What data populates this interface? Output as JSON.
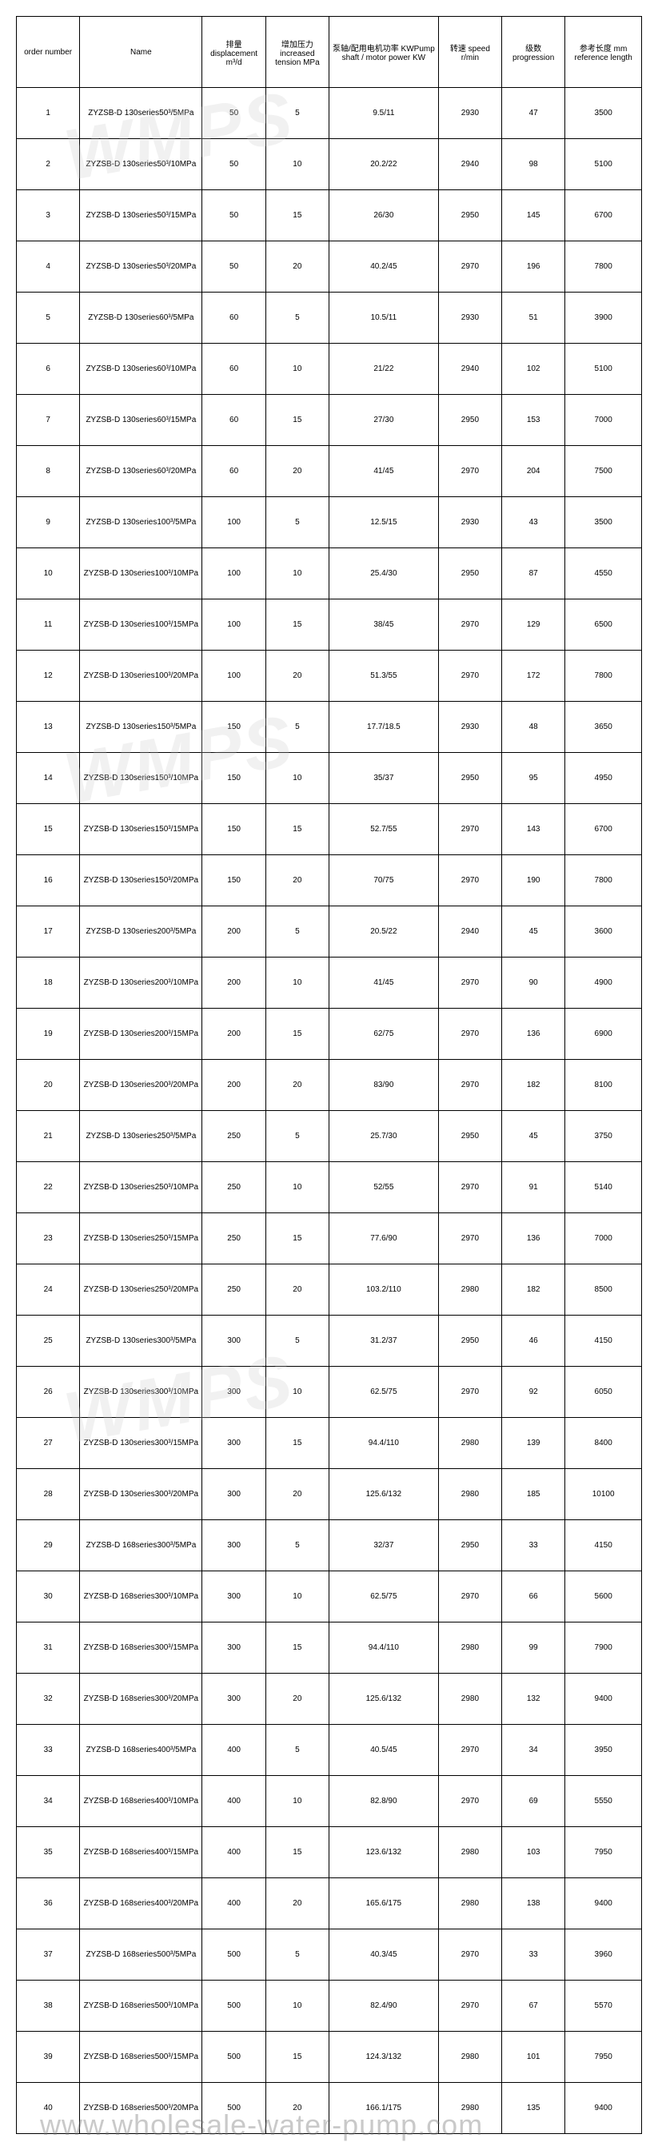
{
  "watermark_text": "WMPS",
  "url_watermark": "www.wholesale-water-pump.com",
  "table": {
    "columns": [
      "order number",
      "Name",
      "排量 displacement m³/d",
      "增加压力 increased tension MPa",
      "泵轴/配用电机功率 KWPump shaft / motor power KW",
      "转速 speed r/min",
      "级数 progression",
      "参考长度 mm reference length"
    ],
    "rows": [
      [
        "1",
        "ZYZSB-D 130series50³/5MPa",
        "50",
        "5",
        "9.5/11",
        "2930",
        "47",
        "3500"
      ],
      [
        "2",
        "ZYZSB-D 130series50³/10MPa",
        "50",
        "10",
        "20.2/22",
        "2940",
        "98",
        "5100"
      ],
      [
        "3",
        "ZYZSB-D 130series50³/15MPa",
        "50",
        "15",
        "26/30",
        "2950",
        "145",
        "6700"
      ],
      [
        "4",
        "ZYZSB-D 130series50³/20MPa",
        "50",
        "20",
        "40.2/45",
        "2970",
        "196",
        "7800"
      ],
      [
        "5",
        "ZYZSB-D 130series60³/5MPa",
        "60",
        "5",
        "10.5/11",
        "2930",
        "51",
        "3900"
      ],
      [
        "6",
        "ZYZSB-D 130series60³/10MPa",
        "60",
        "10",
        "21/22",
        "2940",
        "102",
        "5100"
      ],
      [
        "7",
        "ZYZSB-D 130series60³/15MPa",
        "60",
        "15",
        "27/30",
        "2950",
        "153",
        "7000"
      ],
      [
        "8",
        "ZYZSB-D 130series60³/20MPa",
        "60",
        "20",
        "41/45",
        "2970",
        "204",
        "7500"
      ],
      [
        "9",
        "ZYZSB-D 130series100³/5MPa",
        "100",
        "5",
        "12.5/15",
        "2930",
        "43",
        "3500"
      ],
      [
        "10",
        "ZYZSB-D 130series100³/10MPa",
        "100",
        "10",
        "25.4/30",
        "2950",
        "87",
        "4550"
      ],
      [
        "11",
        "ZYZSB-D 130series100³/15MPa",
        "100",
        "15",
        "38/45",
        "2970",
        "129",
        "6500"
      ],
      [
        "12",
        "ZYZSB-D 130series100³/20MPa",
        "100",
        "20",
        "51.3/55",
        "2970",
        "172",
        "7800"
      ],
      [
        "13",
        "ZYZSB-D 130series150³/5MPa",
        "150",
        "5",
        "17.7/18.5",
        "2930",
        "48",
        "3650"
      ],
      [
        "14",
        "ZYZSB-D 130series150³/10MPa",
        "150",
        "10",
        "35/37",
        "2950",
        "95",
        "4950"
      ],
      [
        "15",
        "ZYZSB-D 130series150³/15MPa",
        "150",
        "15",
        "52.7/55",
        "2970",
        "143",
        "6700"
      ],
      [
        "16",
        "ZYZSB-D 130series150³/20MPa",
        "150",
        "20",
        "70/75",
        "2970",
        "190",
        "7800"
      ],
      [
        "17",
        "ZYZSB-D 130series200³/5MPa",
        "200",
        "5",
        "20.5/22",
        "2940",
        "45",
        "3600"
      ],
      [
        "18",
        "ZYZSB-D 130series200³/10MPa",
        "200",
        "10",
        "41/45",
        "2970",
        "90",
        "4900"
      ],
      [
        "19",
        "ZYZSB-D 130series200³/15MPa",
        "200",
        "15",
        "62/75",
        "2970",
        "136",
        "6900"
      ],
      [
        "20",
        "ZYZSB-D 130series200³/20MPa",
        "200",
        "20",
        "83/90",
        "2970",
        "182",
        "8100"
      ],
      [
        "21",
        "ZYZSB-D 130series250³/5MPa",
        "250",
        "5",
        "25.7/30",
        "2950",
        "45",
        "3750"
      ],
      [
        "22",
        "ZYZSB-D 130series250³/10MPa",
        "250",
        "10",
        "52/55",
        "2970",
        "91",
        "5140"
      ],
      [
        "23",
        "ZYZSB-D 130series250³/15MPa",
        "250",
        "15",
        "77.6/90",
        "2970",
        "136",
        "7000"
      ],
      [
        "24",
        "ZYZSB-D 130series250³/20MPa",
        "250",
        "20",
        "103.2/110",
        "2980",
        "182",
        "8500"
      ],
      [
        "25",
        "ZYZSB-D 130series300³/5MPa",
        "300",
        "5",
        "31.2/37",
        "2950",
        "46",
        "4150"
      ],
      [
        "26",
        "ZYZSB-D 130series300³/10MPa",
        "300",
        "10",
        "62.5/75",
        "2970",
        "92",
        "6050"
      ],
      [
        "27",
        "ZYZSB-D 130series300³/15MPa",
        "300",
        "15",
        "94.4/110",
        "2980",
        "139",
        "8400"
      ],
      [
        "28",
        "ZYZSB-D 130series300³/20MPa",
        "300",
        "20",
        "125.6/132",
        "2980",
        "185",
        "10100"
      ],
      [
        "29",
        "ZYZSB-D 168series300³/5MPa",
        "300",
        "5",
        "32/37",
        "2950",
        "33",
        "4150"
      ],
      [
        "30",
        "ZYZSB-D 168series300³/10MPa",
        "300",
        "10",
        "62.5/75",
        "2970",
        "66",
        "5600"
      ],
      [
        "31",
        "ZYZSB-D 168series300³/15MPa",
        "300",
        "15",
        "94.4/110",
        "2980",
        "99",
        "7900"
      ],
      [
        "32",
        "ZYZSB-D 168series300³/20MPa",
        "300",
        "20",
        "125.6/132",
        "2980",
        "132",
        "9400"
      ],
      [
        "33",
        "ZYZSB-D 168series400³/5MPa",
        "400",
        "5",
        "40.5/45",
        "2970",
        "34",
        "3950"
      ],
      [
        "34",
        "ZYZSB-D 168series400³/10MPa",
        "400",
        "10",
        "82.8/90",
        "2970",
        "69",
        "5550"
      ],
      [
        "35",
        "ZYZSB-D 168series400³/15MPa",
        "400",
        "15",
        "123.6/132",
        "2980",
        "103",
        "7950"
      ],
      [
        "36",
        "ZYZSB-D 168series400³/20MPa",
        "400",
        "20",
        "165.6/175",
        "2980",
        "138",
        "9400"
      ],
      [
        "37",
        "ZYZSB-D 168series500³/5MPa",
        "500",
        "5",
        "40.3/45",
        "2970",
        "33",
        "3960"
      ],
      [
        "38",
        "ZYZSB-D 168series500³/10MPa",
        "500",
        "10",
        "82.4/90",
        "2970",
        "67",
        "5570"
      ],
      [
        "39",
        "ZYZSB-D 168series500³/15MPa",
        "500",
        "15",
        "124.3/132",
        "2980",
        "101",
        "7950"
      ],
      [
        "40",
        "ZYZSB-D 168series500³/20MPa",
        "500",
        "20",
        "166.1/175",
        "2980",
        "135",
        "9400"
      ]
    ]
  }
}
